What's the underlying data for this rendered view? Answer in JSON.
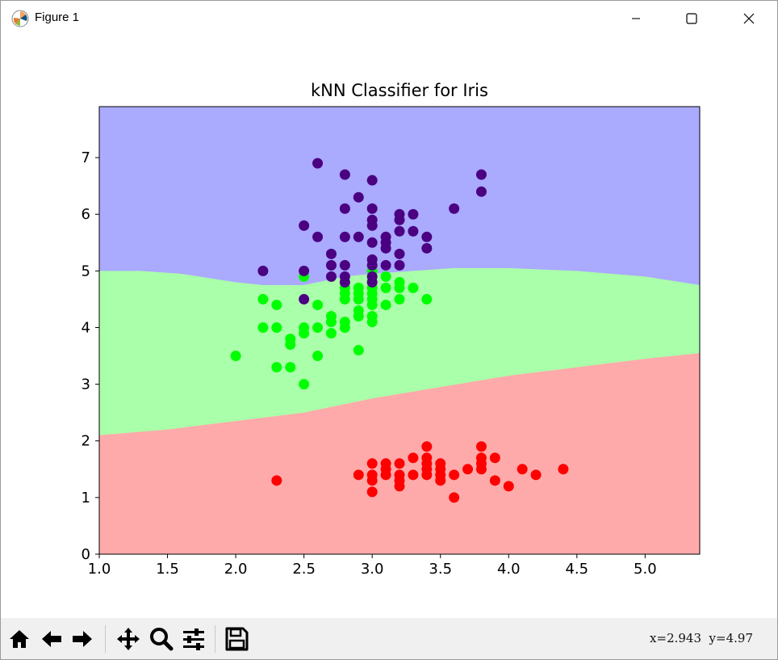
{
  "window": {
    "title": "Figure 1",
    "icons": {
      "app": "matplotlib-logo-icon",
      "minimize": "minimize-icon",
      "maximize": "maximize-icon",
      "close": "close-icon"
    }
  },
  "toolbar": {
    "buttons": [
      "home-icon",
      "back-icon",
      "forward-icon",
      "pan-icon",
      "zoom-icon",
      "configure-subplots-icon",
      "save-icon"
    ],
    "coords": "x=2.943  y=4.97"
  },
  "chart_data": {
    "type": "scatter",
    "title": "kNN Classifier for Iris",
    "xlabel": "",
    "ylabel": "",
    "xlim": [
      1.0,
      5.4
    ],
    "ylim": [
      0,
      7.9
    ],
    "xticks": [
      "1.0",
      "1.5",
      "2.0",
      "2.5",
      "3.0",
      "3.5",
      "4.0",
      "4.5",
      "5.0"
    ],
    "yticks": [
      "0",
      "1",
      "2",
      "3",
      "4",
      "5",
      "6",
      "7"
    ],
    "grid": false,
    "legend": "none",
    "regions": {
      "colors": [
        "#ffaaaa",
        "#aaffaa",
        "#aaaaff"
      ],
      "boundary_red_green": [
        [
          1.0,
          2.1
        ],
        [
          1.5,
          2.2
        ],
        [
          2.0,
          2.35
        ],
        [
          2.5,
          2.5
        ],
        [
          3.0,
          2.75
        ],
        [
          3.5,
          2.95
        ],
        [
          4.0,
          3.15
        ],
        [
          4.5,
          3.3
        ],
        [
          5.0,
          3.45
        ],
        [
          5.4,
          3.55
        ]
      ],
      "boundary_green_blue": [
        [
          1.0,
          5.0
        ],
        [
          1.3,
          5.0
        ],
        [
          1.6,
          4.95
        ],
        [
          2.0,
          4.8
        ],
        [
          2.2,
          4.75
        ],
        [
          2.5,
          4.75
        ],
        [
          2.8,
          4.9
        ],
        [
          3.0,
          4.95
        ],
        [
          3.3,
          5.0
        ],
        [
          3.6,
          5.05
        ],
        [
          4.0,
          5.05
        ],
        [
          4.5,
          5.0
        ],
        [
          5.0,
          4.9
        ],
        [
          5.4,
          4.75
        ]
      ]
    },
    "series": [
      {
        "color": "#ff0000",
        "points": [
          [
            2.3,
            1.3
          ],
          [
            2.9,
            1.4
          ],
          [
            3.0,
            1.1
          ],
          [
            3.0,
            1.3
          ],
          [
            3.0,
            1.4
          ],
          [
            3.0,
            1.6
          ],
          [
            3.1,
            1.4
          ],
          [
            3.1,
            1.5
          ],
          [
            3.1,
            1.6
          ],
          [
            3.2,
            1.2
          ],
          [
            3.2,
            1.3
          ],
          [
            3.2,
            1.4
          ],
          [
            3.2,
            1.6
          ],
          [
            3.3,
            1.4
          ],
          [
            3.3,
            1.7
          ],
          [
            3.4,
            1.4
          ],
          [
            3.4,
            1.5
          ],
          [
            3.4,
            1.6
          ],
          [
            3.4,
            1.7
          ],
          [
            3.4,
            1.9
          ],
          [
            3.5,
            1.3
          ],
          [
            3.5,
            1.4
          ],
          [
            3.5,
            1.5
          ],
          [
            3.5,
            1.6
          ],
          [
            3.6,
            1.0
          ],
          [
            3.6,
            1.4
          ],
          [
            3.7,
            1.5
          ],
          [
            3.8,
            1.5
          ],
          [
            3.8,
            1.6
          ],
          [
            3.8,
            1.7
          ],
          [
            3.8,
            1.9
          ],
          [
            3.9,
            1.3
          ],
          [
            3.9,
            1.7
          ],
          [
            4.0,
            1.2
          ],
          [
            4.1,
            1.5
          ],
          [
            4.2,
            1.4
          ],
          [
            4.4,
            1.5
          ]
        ]
      },
      {
        "color": "#00ff00",
        "points": [
          [
            2.0,
            3.5
          ],
          [
            2.2,
            4.0
          ],
          [
            2.2,
            4.5
          ],
          [
            2.3,
            3.3
          ],
          [
            2.3,
            4.0
          ],
          [
            2.3,
            4.4
          ],
          [
            2.4,
            3.3
          ],
          [
            2.4,
            3.7
          ],
          [
            2.4,
            3.8
          ],
          [
            2.5,
            3.0
          ],
          [
            2.5,
            3.9
          ],
          [
            2.5,
            4.0
          ],
          [
            2.5,
            4.9
          ],
          [
            2.6,
            3.5
          ],
          [
            2.6,
            4.0
          ],
          [
            2.6,
            4.4
          ],
          [
            2.7,
            3.9
          ],
          [
            2.7,
            4.1
          ],
          [
            2.7,
            4.2
          ],
          [
            2.8,
            4.0
          ],
          [
            2.8,
            4.1
          ],
          [
            2.8,
            4.5
          ],
          [
            2.8,
            4.6
          ],
          [
            2.8,
            4.7
          ],
          [
            2.9,
            3.6
          ],
          [
            2.9,
            4.2
          ],
          [
            2.9,
            4.3
          ],
          [
            2.9,
            4.5
          ],
          [
            2.9,
            4.6
          ],
          [
            2.9,
            4.7
          ],
          [
            3.0,
            4.1
          ],
          [
            3.0,
            4.2
          ],
          [
            3.0,
            4.4
          ],
          [
            3.0,
            4.5
          ],
          [
            3.0,
            4.6
          ],
          [
            3.0,
            4.7
          ],
          [
            3.0,
            5.0
          ],
          [
            3.1,
            4.4
          ],
          [
            3.1,
            4.7
          ],
          [
            3.1,
            4.9
          ],
          [
            3.2,
            4.5
          ],
          [
            3.2,
            4.7
          ],
          [
            3.2,
            4.8
          ],
          [
            3.3,
            4.7
          ],
          [
            3.4,
            4.5
          ]
        ]
      },
      {
        "color": "#4b0082",
        "points": [
          [
            2.2,
            5.0
          ],
          [
            2.5,
            4.5
          ],
          [
            2.5,
            5.0
          ],
          [
            2.5,
            5.8
          ],
          [
            2.6,
            5.6
          ],
          [
            2.6,
            6.9
          ],
          [
            2.7,
            4.9
          ],
          [
            2.7,
            5.1
          ],
          [
            2.7,
            5.3
          ],
          [
            2.8,
            4.8
          ],
          [
            2.8,
            4.9
          ],
          [
            2.8,
            5.1
          ],
          [
            2.8,
            5.6
          ],
          [
            2.8,
            6.1
          ],
          [
            2.8,
            6.7
          ],
          [
            2.9,
            5.6
          ],
          [
            2.9,
            6.3
          ],
          [
            3.0,
            4.8
          ],
          [
            3.0,
            4.9
          ],
          [
            3.0,
            5.1
          ],
          [
            3.0,
            5.2
          ],
          [
            3.0,
            5.5
          ],
          [
            3.0,
            5.8
          ],
          [
            3.0,
            5.9
          ],
          [
            3.0,
            6.1
          ],
          [
            3.0,
            6.6
          ],
          [
            3.1,
            5.1
          ],
          [
            3.1,
            5.4
          ],
          [
            3.1,
            5.5
          ],
          [
            3.1,
            5.6
          ],
          [
            3.2,
            5.1
          ],
          [
            3.2,
            5.3
          ],
          [
            3.2,
            5.7
          ],
          [
            3.2,
            5.9
          ],
          [
            3.2,
            6.0
          ],
          [
            3.3,
            5.7
          ],
          [
            3.3,
            6.0
          ],
          [
            3.4,
            5.4
          ],
          [
            3.4,
            5.6
          ],
          [
            3.6,
            6.1
          ],
          [
            3.8,
            6.4
          ],
          [
            3.8,
            6.7
          ]
        ]
      }
    ]
  }
}
